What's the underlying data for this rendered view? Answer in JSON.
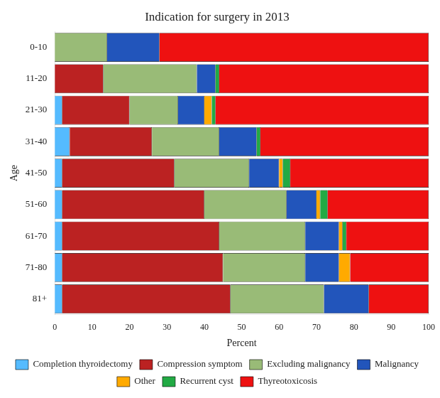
{
  "chart_data": {
    "type": "bar",
    "orientation": "horizontal",
    "stacked": true,
    "title": "Indication for surgery in 2013",
    "xlabel": "Percent",
    "ylabel": "Age",
    "categories": [
      "0-10",
      "11-20",
      "21-30",
      "31-40",
      "41-50",
      "51-60",
      "61-70",
      "71-80",
      "81+"
    ],
    "series": [
      {
        "name": "Completion thyroidectomy",
        "color": "#55BBFF",
        "values": [
          0,
          0,
          2,
          4,
          2,
          2,
          2,
          2,
          2
        ]
      },
      {
        "name": "Compression symptom",
        "color": "#BB2222",
        "values": [
          0,
          13,
          18,
          22,
          30,
          38,
          42,
          43,
          45
        ]
      },
      {
        "name": "Excluding malignancy",
        "color": "#99BB77",
        "values": [
          14,
          25,
          13,
          18,
          20,
          22,
          23,
          22,
          25
        ]
      },
      {
        "name": "Malignancy",
        "color": "#2255BB",
        "values": [
          14,
          5,
          7,
          10,
          8,
          8,
          9,
          9,
          12
        ]
      },
      {
        "name": "Other",
        "color": "#FFAA00",
        "values": [
          0,
          0,
          2,
          0,
          1,
          1,
          1,
          3,
          0
        ]
      },
      {
        "name": "Recurrent cyst",
        "color": "#22AA44",
        "values": [
          0,
          1,
          1,
          1,
          2,
          2,
          1,
          0,
          0
        ]
      },
      {
        "name": "Thyreotoxicosis",
        "color": "#EE1111",
        "values": [
          72,
          56,
          57,
          45,
          37,
          27,
          22,
          21,
          16
        ]
      }
    ],
    "xlim": [
      0,
      100
    ],
    "xticks": [
      0,
      10,
      20,
      30,
      40,
      50,
      60,
      70,
      80,
      90,
      100
    ],
    "grid": false,
    "legend": "bottom"
  }
}
